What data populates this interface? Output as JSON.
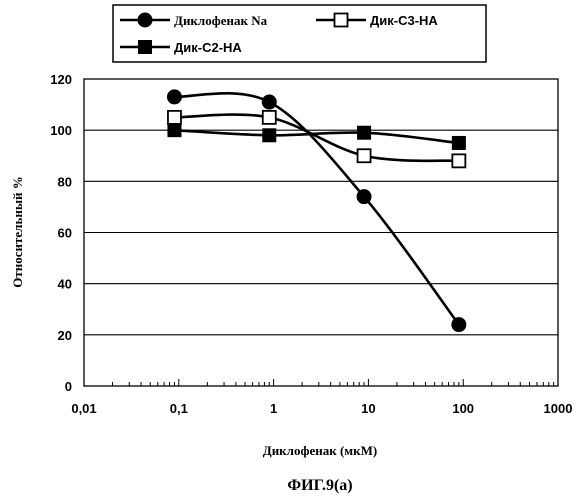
{
  "chart_data": {
    "type": "line",
    "title": "",
    "xlabel": "Диклофенак (мкМ)",
    "ylabel": "Относительный %",
    "caption": "ФИГ.9(a)",
    "x_scale": "log",
    "xlim": [
      0.01,
      1000
    ],
    "ylim": [
      0,
      120
    ],
    "x_ticks": [
      "0,01",
      "0,1",
      "1",
      "10",
      "100",
      "1000"
    ],
    "x_tick_values": [
      0.01,
      0.1,
      1,
      10,
      100,
      1000
    ],
    "y_ticks": [
      "0",
      "20",
      "40",
      "60",
      "80",
      "100",
      "120"
    ],
    "y_tick_values": [
      0,
      20,
      40,
      60,
      80,
      100,
      120
    ],
    "grid": true,
    "legend_position": "top",
    "series": [
      {
        "name": "Диклофенак Na",
        "marker": "circle-filled",
        "color": "#000000",
        "x": [
          0.09,
          0.9,
          9,
          90
        ],
        "y": [
          113,
          111,
          74,
          24
        ]
      },
      {
        "name": "Дик-C3-HA",
        "marker": "square-open",
        "color": "#000000",
        "x": [
          0.09,
          0.9,
          9,
          90
        ],
        "y": [
          105,
          105,
          90,
          88
        ]
      },
      {
        "name": "Дик-C2-HA",
        "marker": "square-filled",
        "color": "#000000",
        "x": [
          0.09,
          0.9,
          9,
          90
        ],
        "y": [
          100,
          98,
          99,
          95
        ]
      }
    ]
  }
}
